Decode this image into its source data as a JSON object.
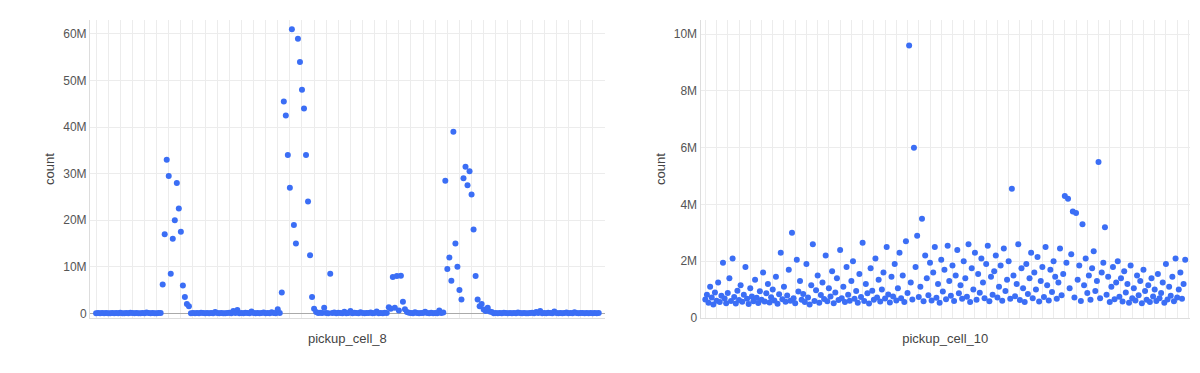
{
  "chart_data": [
    {
      "type": "scatter",
      "x_label": "pickup_cell_8",
      "y_label": "count",
      "color": "#3b6ef5",
      "marker": "circle",
      "grid": true,
      "tick_labels": "y",
      "ylim": [
        -1000000,
        63000000
      ],
      "yticks": [
        0,
        {
          "value": 10000000,
          "label": "10M"
        },
        {
          "value": 20000000,
          "label": "20M"
        },
        {
          "value": 30000000,
          "label": "30M"
        },
        {
          "value": 40000000,
          "label": "40M"
        },
        {
          "value": 50000000,
          "label": "50M"
        },
        {
          "value": 60000000,
          "label": "60M"
        }
      ],
      "values": [
        20000,
        50000,
        10000,
        80000,
        30000,
        60000,
        15000,
        40000,
        90000,
        25000,
        70000,
        35000,
        120000,
        45000,
        20000,
        65000,
        30000,
        150000,
        55000,
        25000,
        80000,
        40000,
        10000,
        60000,
        35000,
        200000,
        50000,
        20000,
        75000,
        30000,
        45000,
        100000,
        60000,
        6200000,
        17000000,
        33000000,
        29500000,
        8500000,
        16000000,
        20000000,
        28000000,
        22500000,
        17500000,
        6000000,
        3500000,
        2000000,
        1500000,
        40000,
        90000,
        30000,
        60000,
        20000,
        110000,
        50000,
        35000,
        80000,
        25000,
        70000,
        45000,
        300000,
        55000,
        30000,
        90000,
        40000,
        20000,
        65000,
        150000,
        35000,
        500000,
        60000,
        700000,
        45000,
        80000,
        30000,
        120000,
        50000,
        25000,
        400000,
        70000,
        35000,
        90000,
        20000,
        55000,
        160000,
        40000,
        75000,
        30000,
        250000,
        60000,
        45000,
        900000,
        100000,
        4500000,
        45500000,
        42500000,
        34000000,
        27000000,
        61000000,
        19000000,
        15000000,
        59000000,
        54000000,
        48000000,
        44000000,
        34000000,
        24000000,
        12500000,
        3500000,
        1000000,
        300000,
        80000,
        150000,
        50000,
        1200000,
        90000,
        40000,
        8500000,
        60000,
        200000,
        30000,
        110000,
        70000,
        45000,
        350000,
        25000,
        85000,
        500000,
        40000,
        130000,
        60000,
        20000,
        250000,
        75000,
        35000,
        95000,
        50000,
        180000,
        30000,
        65000,
        400000,
        45000,
        90000,
        25000,
        140000,
        55000,
        1300000,
        1000000,
        7800000,
        1200000,
        8000000,
        600000,
        8100000,
        2500000,
        900000,
        300000,
        150000,
        60000,
        40000,
        220000,
        80000,
        30000,
        100000,
        50000,
        350000,
        70000,
        25000,
        150000,
        45000,
        90000,
        35000,
        600000,
        55000,
        200000,
        28500000,
        9500000,
        12000000,
        7000000,
        39000000,
        15000000,
        10000000,
        5000000,
        3000000,
        29000000,
        31500000,
        27500000,
        30500000,
        25500000,
        18000000,
        8000000,
        3000000,
        1500000,
        2000000,
        800000,
        500000,
        1200000,
        400000,
        300000,
        40000,
        90000,
        30000,
        60000,
        20000,
        110000,
        50000,
        35000,
        80000,
        25000,
        70000,
        45000,
        200000,
        55000,
        30000,
        90000,
        40000,
        20000,
        65000,
        150000,
        35000,
        300000,
        60000,
        500000,
        45000,
        80000,
        30000,
        120000,
        50000,
        25000,
        400000,
        70000,
        35000,
        90000,
        20000,
        55000,
        160000,
        40000,
        75000,
        30000,
        250000,
        60000,
        45000,
        100000,
        80000,
        30000,
        50000,
        20000,
        60000,
        40000,
        70000,
        30000,
        50000
      ]
    },
    {
      "type": "scatter",
      "x_label": "pickup_cell_10",
      "y_label": "count",
      "color": "#3b6ef5",
      "marker": "circle",
      "grid": true,
      "tick_labels": "y",
      "ylim": [
        0,
        10500000
      ],
      "yticks": [
        0,
        {
          "value": 2000000,
          "label": "2M"
        },
        {
          "value": 4000000,
          "label": "4M"
        },
        {
          "value": 6000000,
          "label": "6M"
        },
        {
          "value": 8000000,
          "label": "8M"
        },
        {
          "value": 10000000,
          "label": "10M"
        }
      ],
      "values": [
        650000,
        820000,
        540000,
        1100000,
        720000,
        480000,
        900000,
        610000,
        1250000,
        560000,
        780000,
        1950000,
        690000,
        520000,
        880000,
        1400000,
        600000,
        2100000,
        740000,
        510000,
        960000,
        630000,
        1150000,
        570000,
        820000,
        1800000,
        680000,
        490000,
        1050000,
        760000,
        590000,
        1350000,
        710000,
        530000,
        940000,
        640000,
        1600000,
        580000,
        870000,
        1200000,
        550000,
        730000,
        1000000,
        620000,
        1450000,
        500000,
        840000,
        2300000,
        660000,
        1100000,
        570000,
        790000,
        1700000,
        610000,
        3000000,
        700000,
        520000,
        2050000,
        930000,
        1300000,
        640000,
        850000,
        560000,
        1900000,
        720000,
        480000,
        1150000,
        2600000,
        600000,
        980000,
        1500000,
        540000,
        810000,
        1250000,
        670000,
        2200000,
        590000,
        1050000,
        760000,
        1650000,
        520000,
        900000,
        1400000,
        630000,
        2400000,
        700000,
        1100000,
        560000,
        1800000,
        820000,
        610000,
        1300000,
        2000000,
        680000,
        950000,
        540000,
        1550000,
        740000,
        2650000,
        600000,
        1200000,
        870000,
        510000,
        1750000,
        960000,
        640000,
        2100000,
        720000,
        1350000,
        580000,
        1000000,
        1600000,
        690000,
        2500000,
        830000,
        550000,
        1450000,
        760000,
        1900000,
        620000,
        1050000,
        2300000,
        700000,
        1500000,
        560000,
        2700000,
        880000,
        9600000,
        1250000,
        650000,
        6000000,
        1800000,
        2900000,
        740000,
        1100000,
        3500000,
        590000,
        2200000,
        1400000,
        800000,
        1950000,
        620000,
        1600000,
        2500000,
        710000,
        1200000,
        540000,
        2050000,
        930000,
        1700000,
        660000,
        2550000,
        1300000,
        780000,
        1850000,
        600000,
        1500000,
        2400000,
        870000,
        1150000,
        680000,
        2000000,
        1400000,
        750000,
        2600000,
        560000,
        1750000,
        1000000,
        2300000,
        640000,
        1550000,
        890000,
        2100000,
        1250000,
        700000,
        1900000,
        2550000,
        590000,
        1450000,
        820000,
        1650000,
        2200000,
        720000,
        1100000,
        1850000,
        610000,
        2450000,
        950000,
        1350000,
        2000000,
        680000,
        4550000,
        1500000,
        770000,
        1200000,
        2600000,
        630000,
        1750000,
        1050000,
        560000,
        1900000,
        850000,
        1400000,
        2300000,
        700000,
        1600000,
        1000000,
        2150000,
        580000,
        1300000,
        1800000,
        740000,
        2500000,
        1150000,
        620000,
        1700000,
        920000,
        2000000,
        1450000,
        680000,
        1250000,
        2450000,
        800000,
        1550000,
        4300000,
        1950000,
        4200000,
        1050000,
        2250000,
        3750000,
        720000,
        3700000,
        1350000,
        1850000,
        600000,
        3300000,
        1150000,
        2100000,
        880000,
        1500000,
        640000,
        1750000,
        2350000,
        950000,
        1300000,
        5500000,
        700000,
        1600000,
        1950000,
        3200000,
        820000,
        1450000,
        560000,
        1100000,
        1800000,
        660000,
        1250000,
        2000000,
        750000,
        1400000,
        580000,
        1650000,
        900000,
        1200000,
        540000,
        1850000,
        700000,
        1050000,
        620000,
        1500000,
        800000,
        1300000,
        520000,
        1700000,
        950000,
        640000,
        1150000,
        560000,
        1400000,
        760000,
        1000000,
        600000,
        1550000,
        700000,
        880000,
        1250000,
        540000,
        1900000,
        650000,
        1100000,
        780000,
        1450000,
        590000,
        2100000,
        720000,
        1000000,
        1600000,
        680000,
        1200000,
        2050000
      ]
    }
  ]
}
